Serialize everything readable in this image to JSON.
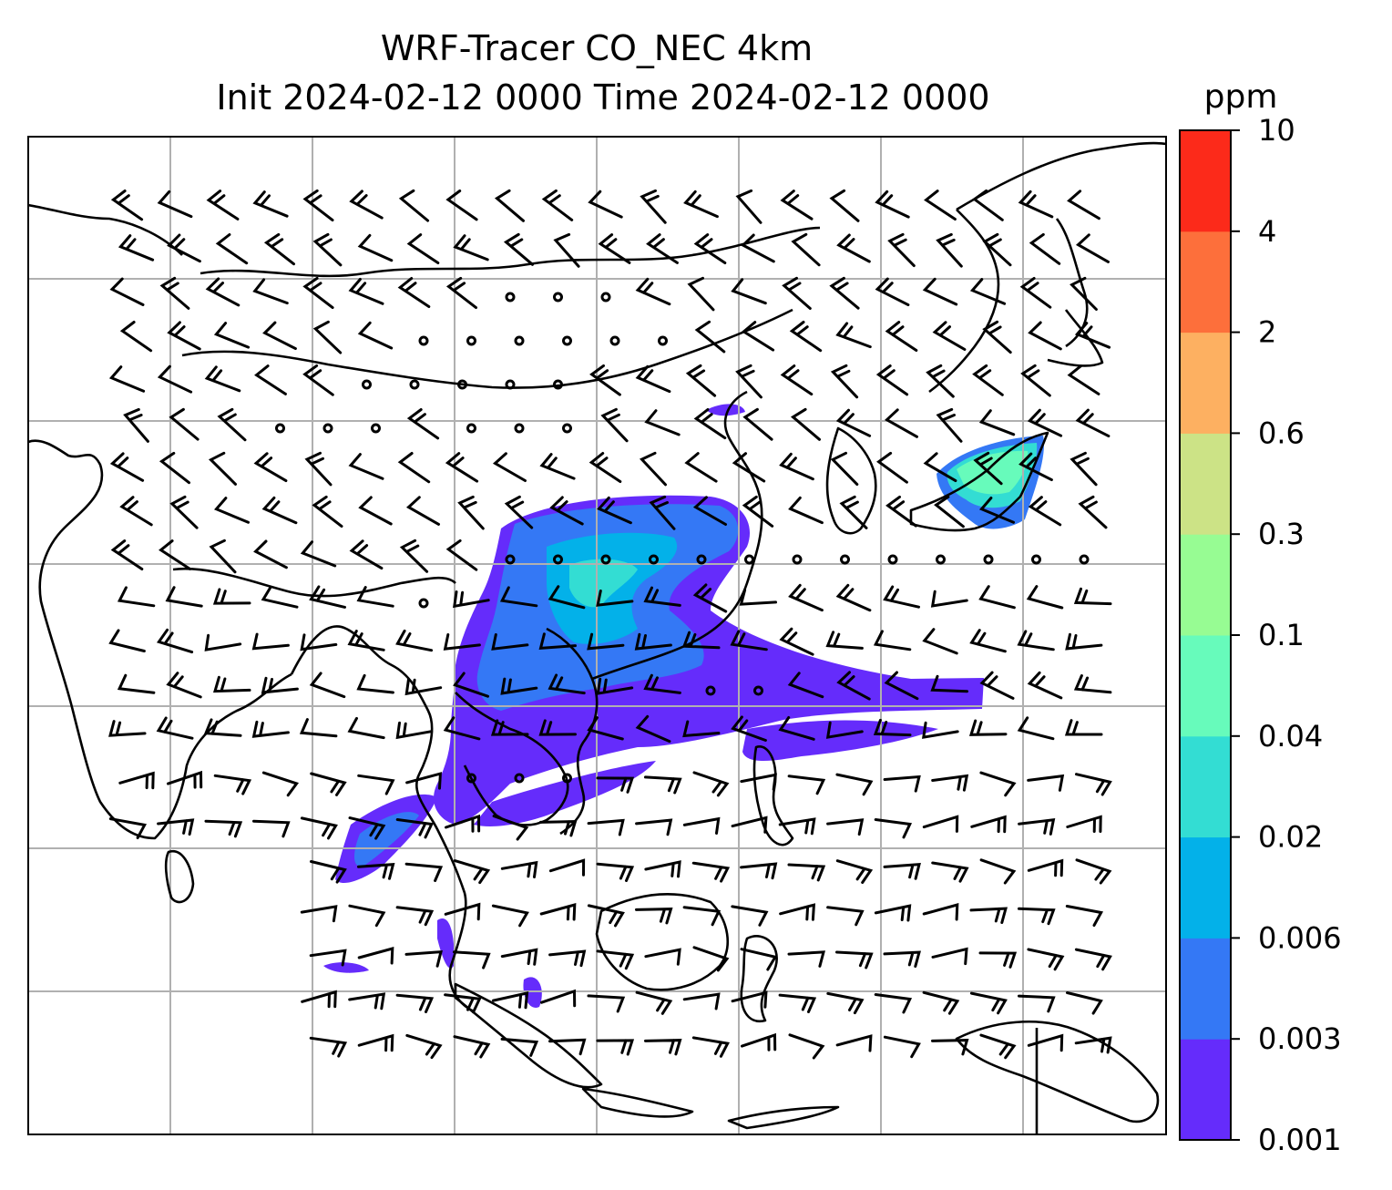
{
  "title": {
    "line1": "WRF-Tracer CO_NEC 4km",
    "line2": "Init 2024-02-12 0000 Time 2024-02-12 0000"
  },
  "colorbar": {
    "unit": "ppm",
    "levels": [
      "0.001",
      "0.003",
      "0.006",
      "0.02",
      "0.04",
      "0.1",
      "0.3",
      "0.6",
      "2",
      "4",
      "10"
    ],
    "colors": [
      "#652cfb",
      "#3478f5",
      "#03b1e9",
      "#33ddd3",
      "#67fbbb",
      "#97fc93",
      "#cce386",
      "#fdb061",
      "#fd6f3b",
      "#fc2a1a"
    ]
  },
  "map": {
    "gridlines": true,
    "coastline_color": "#000000",
    "wind_barbs": true
  },
  "chart_data": {
    "type": "heatmap",
    "variable": "CO_NEC",
    "unit": "ppm",
    "levels": [
      0.001,
      0.003,
      0.006,
      0.02,
      0.04,
      0.1,
      0.3,
      0.6,
      2,
      4,
      10
    ],
    "grid": true
  }
}
